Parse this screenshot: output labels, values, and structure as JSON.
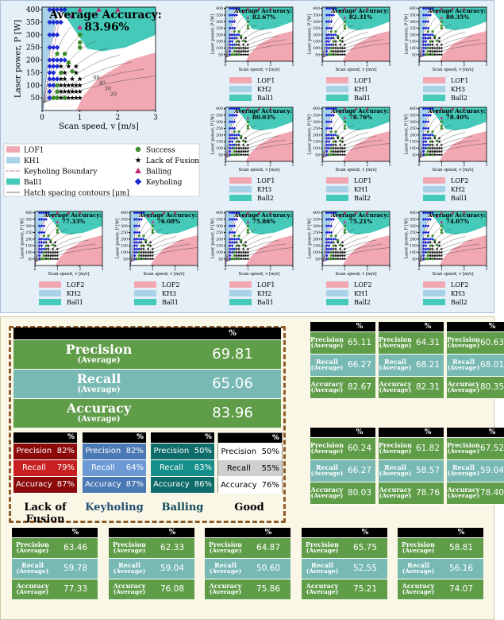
{
  "chart_data": {
    "type": "scatter",
    "xlabel": "Scan speed, v [m/s]",
    "ylabel": "Laser power, P [W]",
    "xlim": [
      0,
      3
    ],
    "ylim": [
      0,
      410
    ],
    "xticks": [
      "0",
      "1",
      "2",
      "3"
    ],
    "yticks": [
      "50",
      "100",
      "150",
      "200",
      "250",
      "300",
      "350",
      "400"
    ],
    "contour_labels": [
      "60",
      "40",
      "30",
      "20"
    ],
    "main": {
      "accuracy_title": "Average Accuracy:",
      "accuracy": "83.96%"
    },
    "subplots": [
      {
        "accuracy": "82.67%",
        "legend": [
          "LOF1",
          "KH2",
          "Ball1"
        ]
      },
      {
        "accuracy": "82.31%",
        "legend": [
          "LOF1",
          "KH1",
          "Ball1"
        ]
      },
      {
        "accuracy": "80.35%",
        "legend": [
          "LOF1",
          "KH3",
          "Ball2"
        ]
      },
      {
        "accuracy": "80.03%",
        "legend": [
          "LOF1",
          "KH3",
          "Ball2"
        ]
      },
      {
        "accuracy": "78.76%",
        "legend": [
          "LOF1",
          "KH1",
          "Ball2"
        ]
      },
      {
        "accuracy": "78.40%",
        "legend": [
          "LOF2",
          "KH2",
          "Ball1"
        ]
      },
      {
        "accuracy": "77.33%",
        "legend": [
          "LOF2",
          "KH2",
          "Ball1"
        ]
      },
      {
        "accuracy": "76.08%",
        "legend": [
          "LOF2",
          "KH3",
          "Ball1"
        ]
      },
      {
        "accuracy": "75.86%",
        "legend": [
          "LOF1",
          "KH2",
          "Ball1"
        ]
      },
      {
        "accuracy": "75.21%",
        "legend": [
          "LOF2",
          "KH1",
          "Ball2"
        ]
      },
      {
        "accuracy": "74.07%",
        "legend": [
          "LOF2",
          "KH3",
          "Ball2"
        ]
      }
    ],
    "legend": {
      "regions": [
        "LOF1",
        "KH1",
        "Keyholing Boundary",
        "Ball1",
        "Hatch spacing contours [μm]"
      ],
      "markers": [
        "Success",
        "Lack of Fusion",
        "Balling",
        "Keyholing"
      ]
    },
    "colors": {
      "lof": "#f2a8b2",
      "kh": "#a9d2e8",
      "ball": "#45c9b8",
      "success": "#3d8c2a",
      "lack": "#000000",
      "balling": "#c4287a",
      "keyholing": "#1a2ad6"
    },
    "points": {
      "keyholing": [
        [
          0.2,
          400
        ],
        [
          0.3,
          400
        ],
        [
          0.4,
          400
        ],
        [
          0.5,
          400
        ],
        [
          0.6,
          400
        ],
        [
          0.2,
          350
        ],
        [
          0.3,
          350
        ],
        [
          0.4,
          350
        ],
        [
          0.5,
          350
        ],
        [
          0.2,
          300
        ],
        [
          0.3,
          300
        ],
        [
          0.4,
          300
        ],
        [
          0.2,
          250
        ],
        [
          0.3,
          250
        ],
        [
          0.4,
          250
        ],
        [
          0.2,
          200
        ],
        [
          0.3,
          200
        ],
        [
          0.4,
          200
        ],
        [
          0.5,
          200
        ],
        [
          0.6,
          200
        ],
        [
          0.2,
          175
        ],
        [
          0.3,
          175
        ],
        [
          0.4,
          175
        ],
        [
          0.2,
          150
        ],
        [
          0.3,
          150
        ],
        [
          0.2,
          125
        ],
        [
          0.3,
          125
        ],
        [
          0.4,
          125
        ],
        [
          0.2,
          100
        ],
        [
          0.3,
          100
        ],
        [
          0.2,
          75
        ],
        [
          0.2,
          50
        ]
      ],
      "balling": [
        [
          1.0,
          400
        ],
        [
          1.5,
          400
        ],
        [
          2.0,
          400
        ],
        [
          0.8,
          375
        ],
        [
          1.0,
          330
        ]
      ],
      "success": [
        [
          0.4,
          225
        ],
        [
          0.6,
          225
        ],
        [
          0.7,
          190
        ],
        [
          0.8,
          155
        ],
        [
          0.5,
          150
        ],
        [
          0.4,
          100
        ],
        [
          0.4,
          75
        ],
        [
          0.3,
          50
        ],
        [
          0.4,
          50
        ],
        [
          0.6,
          50
        ],
        [
          1.0,
          250
        ],
        [
          1.0,
          270
        ],
        [
          1.0,
          300
        ]
      ],
      "lack": [
        [
          0.5,
          175
        ],
        [
          0.7,
          175
        ],
        [
          0.9,
          175
        ],
        [
          0.6,
          150
        ],
        [
          0.9,
          150
        ],
        [
          0.5,
          125
        ],
        [
          0.6,
          125
        ],
        [
          0.8,
          125
        ],
        [
          1.0,
          125
        ],
        [
          0.5,
          100
        ],
        [
          0.6,
          100
        ],
        [
          0.7,
          100
        ],
        [
          0.8,
          100
        ],
        [
          0.9,
          100
        ],
        [
          1.0,
          100
        ],
        [
          0.5,
          75
        ],
        [
          0.6,
          75
        ],
        [
          0.7,
          75
        ],
        [
          0.8,
          75
        ],
        [
          0.9,
          75
        ],
        [
          1.0,
          75
        ],
        [
          0.5,
          50
        ],
        [
          0.7,
          50
        ],
        [
          0.8,
          50
        ],
        [
          0.9,
          50
        ],
        [
          1.0,
          50
        ]
      ]
    }
  },
  "metrics": {
    "main": {
      "header": "%",
      "rows": [
        {
          "label": "Precision",
          "sub": "(Average)",
          "value": "69.81"
        },
        {
          "label": "Recall",
          "sub": "(Average)",
          "value": "65.06"
        },
        {
          "label": "Accuracy",
          "sub": "(Average)",
          "value": "83.96"
        }
      ]
    },
    "classes": [
      {
        "name": "Lack of Fusion",
        "header": "%",
        "rows": [
          {
            "label": "Precision",
            "value": "82%"
          },
          {
            "label": "Recall",
            "value": "79%"
          },
          {
            "label": "Accuracy",
            "value": "87%"
          }
        ]
      },
      {
        "name": "Keyholing",
        "header": "%",
        "rows": [
          {
            "label": "Precision",
            "value": "82%"
          },
          {
            "label": "Recall",
            "value": "64%"
          },
          {
            "label": "Accuracy",
            "value": "87%"
          }
        ]
      },
      {
        "name": "Balling",
        "header": "%",
        "rows": [
          {
            "label": "Precision",
            "value": "50%"
          },
          {
            "label": "Recall",
            "value": "83%"
          },
          {
            "label": "Accuracy",
            "value": "86%"
          }
        ]
      },
      {
        "name": "Good",
        "header": "%",
        "rows": [
          {
            "label": "Precision",
            "value": "50%"
          },
          {
            "label": "Recall",
            "value": "55%"
          },
          {
            "label": "Accuracy",
            "value": "76%"
          }
        ]
      }
    ],
    "labels": {
      "precision": "Precision",
      "recall": "Recall",
      "accuracy": "Accuracy",
      "sub": "(Average)",
      "header": "%"
    },
    "small": [
      {
        "precision": "65.11",
        "recall": "66.27",
        "accuracy": "82.67"
      },
      {
        "precision": "64.31",
        "recall": "68.21",
        "accuracy": "82.31"
      },
      {
        "precision": "60.63",
        "recall": "68.01",
        "accuracy": "80.35"
      },
      {
        "precision": "60.24",
        "recall": "66.27",
        "accuracy": "80.03"
      },
      {
        "precision": "61.82",
        "recall": "58.57",
        "accuracy": "78.76"
      },
      {
        "precision": "67.52",
        "recall": "59.04",
        "accuracy": "78.40"
      },
      {
        "precision": "63.46",
        "recall": "59.78",
        "accuracy": "77.33"
      },
      {
        "precision": "62.33",
        "recall": "59.04",
        "accuracy": "76.08"
      },
      {
        "precision": "64.87",
        "recall": "50.60",
        "accuracy": "75.86"
      },
      {
        "precision": "65.75",
        "recall": "52.55",
        "accuracy": "75.21"
      },
      {
        "precision": "58.81",
        "recall": "56.16",
        "accuracy": "74.07"
      }
    ]
  }
}
